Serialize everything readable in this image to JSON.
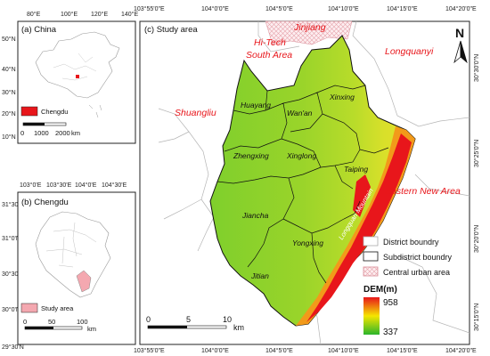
{
  "top_ticks": [
    "103°55'0\"E",
    "104°0'0\"E",
    "104°5'0\"E",
    "104°10'0\"E",
    "104°15'0\"E",
    "104°20'0\"E"
  ],
  "bottom_ticks": [
    "103°55'0\"E",
    "104°0'0\"E",
    "104°5'0\"E",
    "104°10'0\"E",
    "104°15'0\"E",
    "104°20'0\"E"
  ],
  "right_ticks": [
    "30°30'0\"N",
    "30°25'0\"N",
    "30°20'0\"N",
    "30°15'0\"N"
  ],
  "panel_a": {
    "title": "(a) China",
    "top_ticks": [
      "80°E",
      "100°E",
      "120°E",
      "140°E"
    ],
    "left_ticks": [
      "50°N",
      "40°N",
      "30°N",
      "20°N",
      "10°N"
    ],
    "legend_label": "Chengdu",
    "scale_labels": [
      "0",
      "1000",
      "2000"
    ],
    "scale_unit": "km",
    "highlight_color": "#e8161b"
  },
  "panel_b": {
    "title": "(b) Chengdu",
    "top_ticks": [
      "103°0'E",
      "103°30'E",
      "104°0'E",
      "104°30'E"
    ],
    "left_ticks": [
      "31°30'N",
      "31°0'N",
      "30°30'N",
      "30°0'N",
      "29°30'N"
    ],
    "legend_label": "Study area",
    "scale_labels": [
      "0",
      "50",
      "100"
    ],
    "scale_unit": "km",
    "highlight_color": "#f4a8b0"
  },
  "panel_c": {
    "title": "(c) Study area",
    "outer_labels": [
      "Jinjiang",
      "Hi-Tech",
      "South Area",
      "Longquanyi",
      "Shuangliu",
      "Eastern New Area"
    ],
    "subdistricts": [
      "Huayang",
      "Wan'an",
      "Xinxing",
      "Zhengxing",
      "Xinglong",
      "Taiping",
      "Jiancha",
      "Yongxing",
      "Jitian"
    ],
    "mountain_label": "Longquan Mountain",
    "north_label": "N",
    "legend": {
      "district": "District boundry",
      "subdistrict": "Subdistrict boundry",
      "central": "Central urban area"
    },
    "dem": {
      "title": "DEM(m)",
      "max": "958",
      "min": "337",
      "color_high": "#e8161b",
      "color_mid": "#f5e600",
      "color_low": "#2bb52b"
    },
    "scale_labels": [
      "0",
      "5",
      "10"
    ],
    "scale_unit": "km"
  }
}
